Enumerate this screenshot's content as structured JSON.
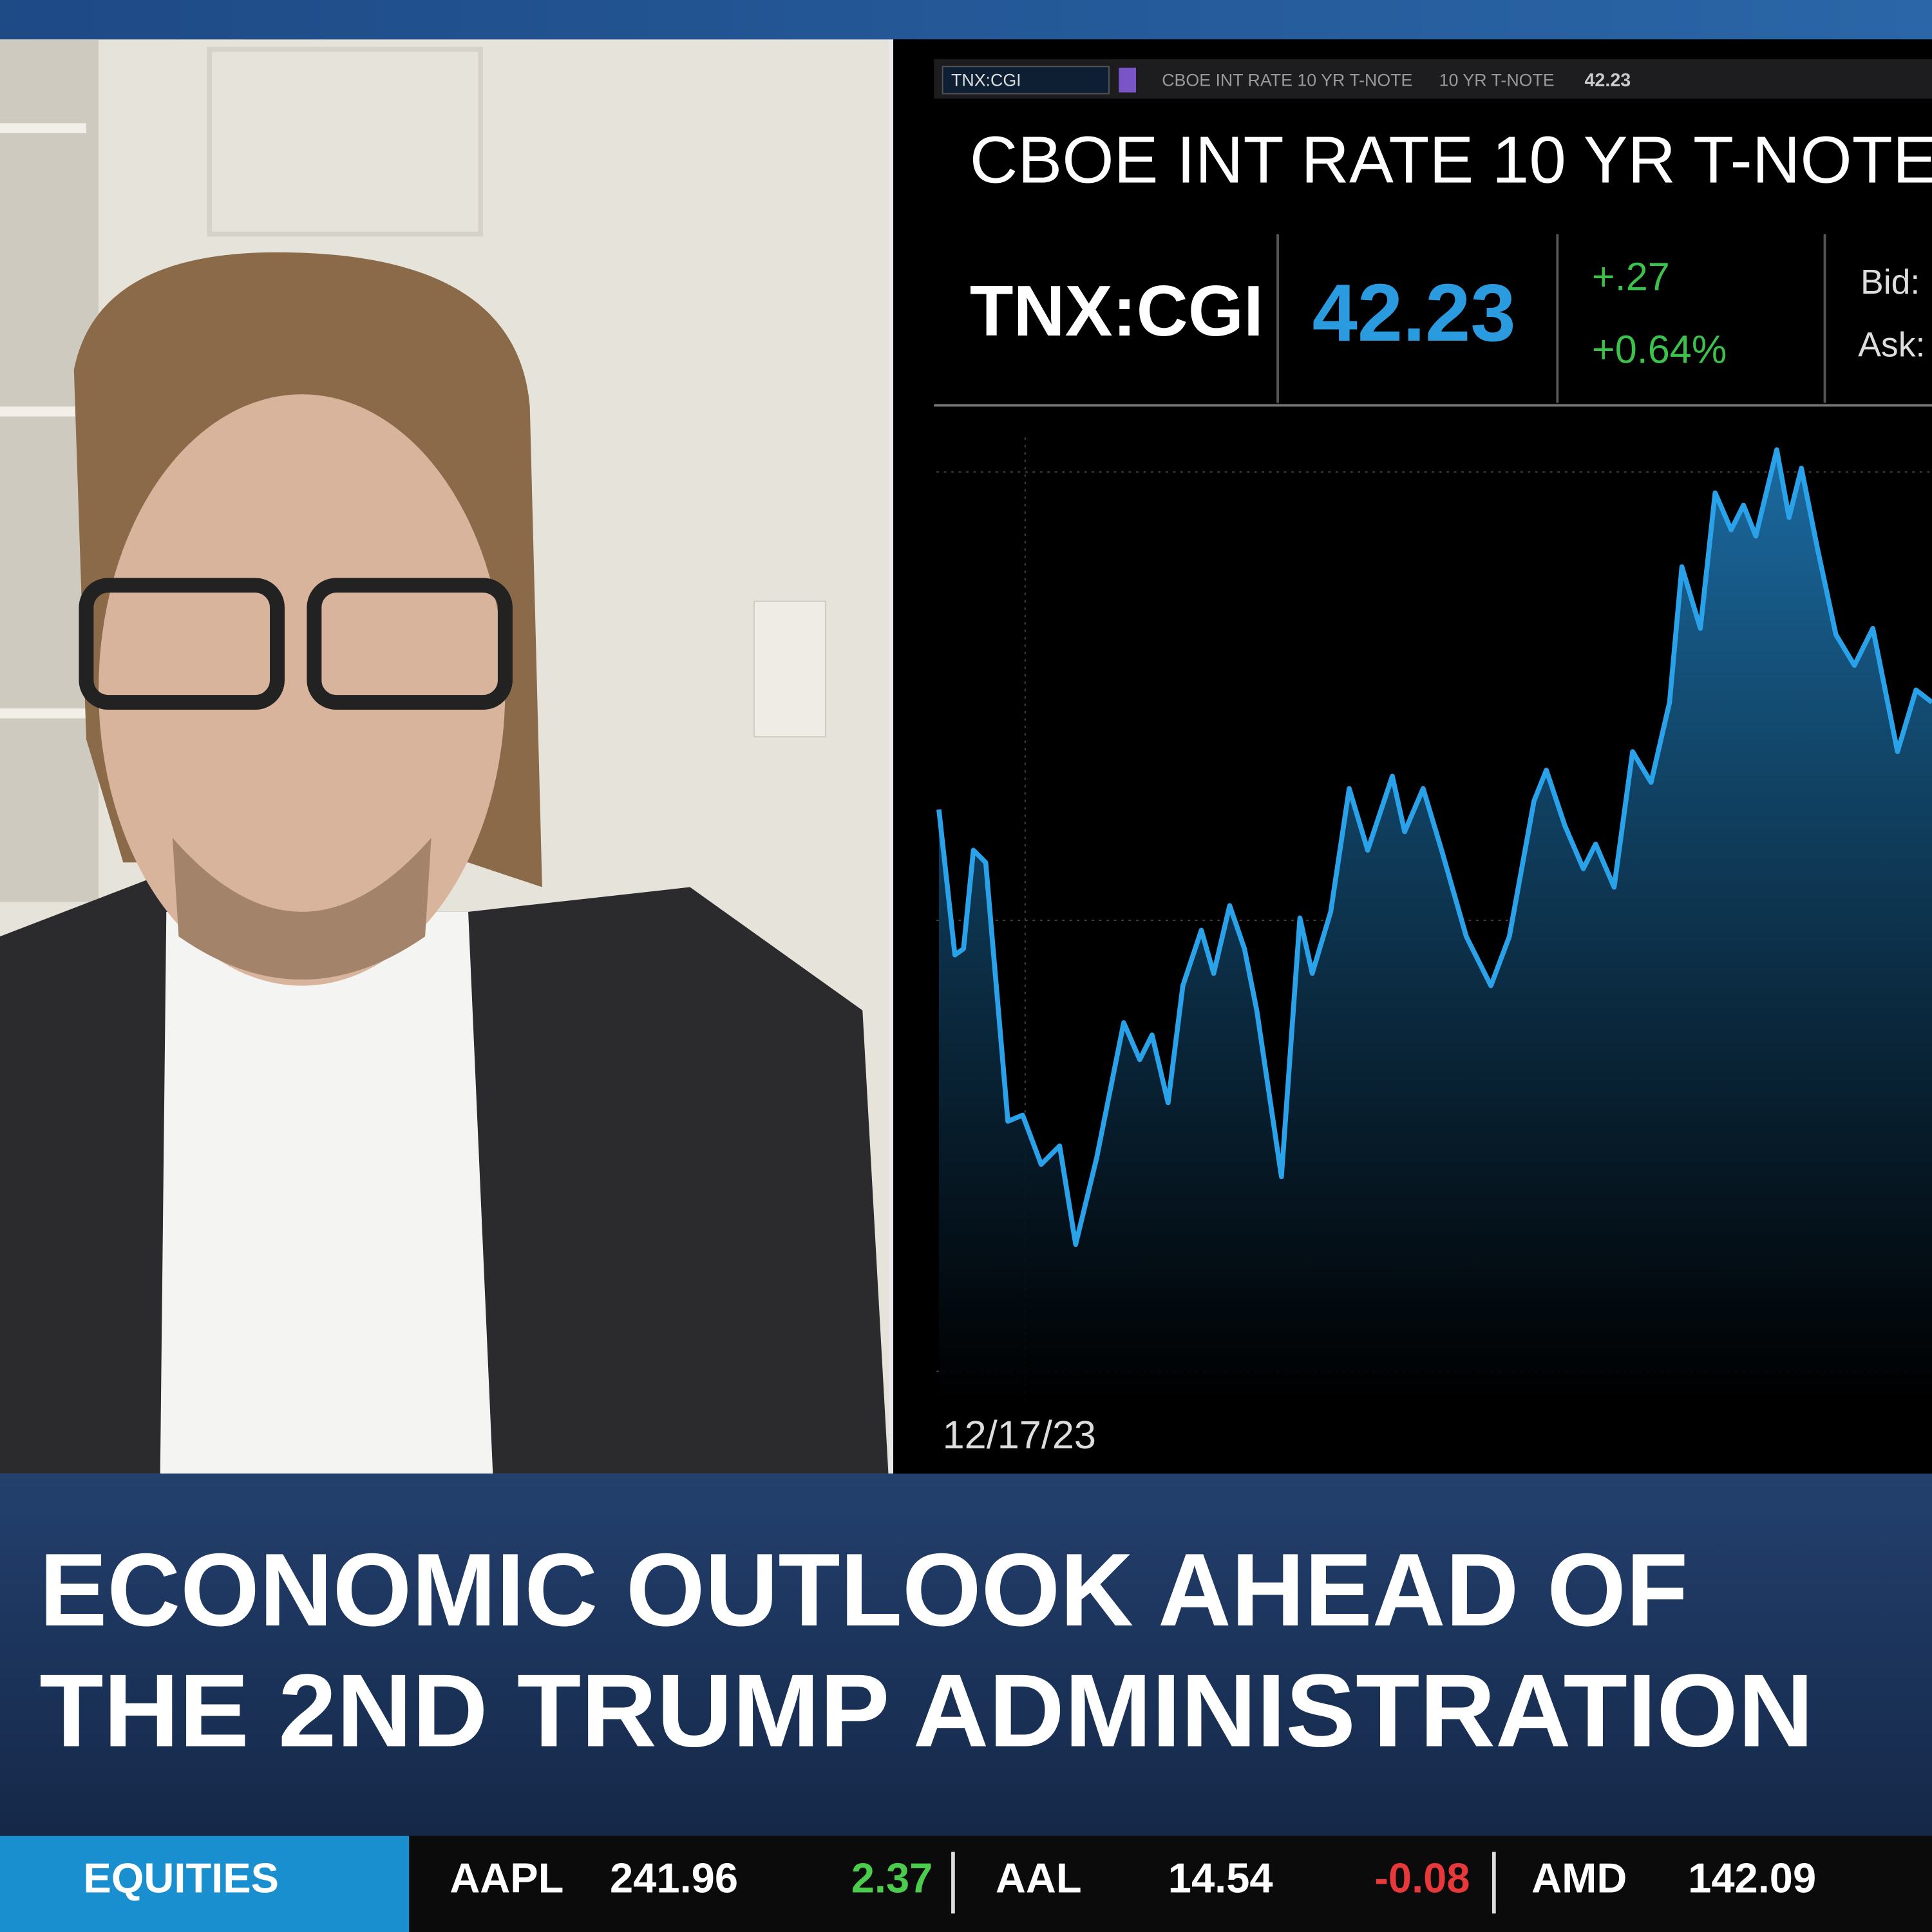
{
  "toolbar": {
    "symbol": "TNX:CGI",
    "description": "CBOE INT RATE 10 YR T-NOTE",
    "short_name": "10 YR T-NOTE",
    "last": "42.23"
  },
  "quote": {
    "title": "CBOE INT RATE 10 YR T-NOTE",
    "symbol": "TNX:CGI",
    "last": "42.23",
    "change": "+.27",
    "change_pct": "+0.64%",
    "bid_label": "Bid:",
    "ask_label": "Ask:"
  },
  "chart": {
    "start_date": "12/17/23"
  },
  "headline": {
    "lines": [
      "ECONOMIC OUTLOOK AHEAD OF",
      "THE 2ND TRUMP ADMINISTRATION"
    ]
  },
  "ticker": {
    "category": "EQUITIES",
    "items": [
      {
        "symbol": "AAPL",
        "price": "241.96",
        "change": "2.37"
      },
      {
        "symbol": "AAL",
        "price": "14.54",
        "change": "-0.08"
      },
      {
        "symbol": "AMD",
        "price": "142.09"
      }
    ]
  }
}
